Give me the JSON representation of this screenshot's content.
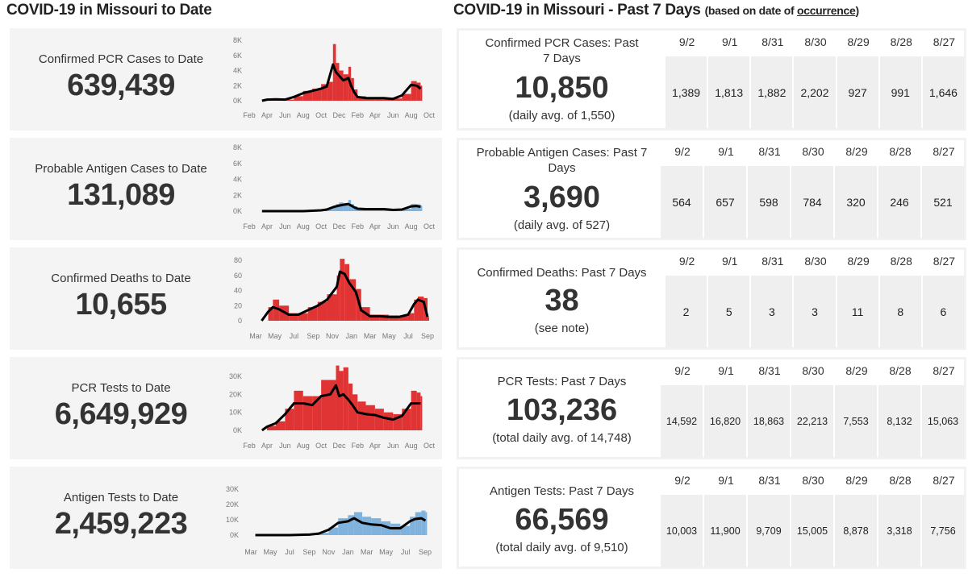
{
  "left_title": "COVID-19 in Missouri to Date",
  "right_title": {
    "main": "COVID-19 in Missouri - Past 7 Days",
    "sub_pre": "(based on date of ",
    "sub_link": "occurrence",
    "sub_post": ")"
  },
  "colors": {
    "red": "#e03434",
    "blue": "#7fb3dd",
    "avg_line": "#000000",
    "panel_bg": "#f4f4f4",
    "cell_bg": "#efefef"
  },
  "to_date": [
    {
      "label": "Confirmed PCR Cases to Date",
      "value": "639,439"
    },
    {
      "label": "Probable Antigen Cases to Date",
      "value": "131,089"
    },
    {
      "label": "Confirmed Deaths to Date",
      "value": "10,655"
    },
    {
      "label": "PCR Tests to Date",
      "value": "6,649,929"
    },
    {
      "label": "Antigen Tests to Date",
      "value": "2,459,223"
    }
  ],
  "past7": [
    {
      "label": "Confirmed PCR Cases: Past 7 Days",
      "value": "10,850",
      "note": "(daily avg. of 1,550)",
      "dates": [
        "9/2",
        "9/1",
        "8/31",
        "8/30",
        "8/29",
        "8/28",
        "8/27"
      ],
      "values": [
        "1,389",
        "1,813",
        "1,882",
        "2,202",
        "927",
        "991",
        "1,646"
      ]
    },
    {
      "label": "Probable Antigen Cases: Past 7 Days",
      "value": "3,690",
      "note": "(daily avg. of 527)",
      "dates": [
        "9/2",
        "9/1",
        "8/31",
        "8/30",
        "8/29",
        "8/28",
        "8/27"
      ],
      "values": [
        "564",
        "657",
        "598",
        "784",
        "320",
        "246",
        "521"
      ]
    },
    {
      "label": "Confirmed Deaths: Past 7 Days",
      "value": "38",
      "note": "(see note)",
      "dates": [
        "9/2",
        "9/1",
        "8/31",
        "8/30",
        "8/29",
        "8/28",
        "8/27"
      ],
      "values": [
        "2",
        "5",
        "3",
        "3",
        "11",
        "8",
        "6"
      ]
    },
    {
      "label": "PCR Tests: Past 7 Days",
      "value": "103,236",
      "note": "(total daily avg. of 14,748)",
      "dates": [
        "9/2",
        "9/1",
        "8/31",
        "8/30",
        "8/29",
        "8/28",
        "8/27"
      ],
      "values": [
        "14,592",
        "16,820",
        "18,863",
        "22,213",
        "7,553",
        "8,132",
        "15,063"
      ]
    },
    {
      "label": "Antigen Tests: Past 7 Days",
      "value": "66,569",
      "note": "(total daily avg. of 9,510)",
      "dates": [
        "9/2",
        "9/1",
        "8/31",
        "8/30",
        "8/29",
        "8/28",
        "8/27"
      ],
      "values": [
        "10,003",
        "11,900",
        "9,709",
        "15,005",
        "8,878",
        "3,318",
        "7,756"
      ]
    }
  ],
  "chart_data": [
    {
      "type": "bar",
      "color": "red",
      "ylim": [
        0,
        8000
      ],
      "xlim": [
        "2020-02-01",
        "2021-10-01"
      ],
      "y_ticks": [
        {
          "v": 0,
          "label": "0K"
        },
        {
          "v": 2000,
          "label": "2K"
        },
        {
          "v": 4000,
          "label": "4K"
        },
        {
          "v": 6000,
          "label": "6K"
        },
        {
          "v": 8000,
          "label": "8K"
        }
      ],
      "x_ticks": [
        {
          "d": "2020-02-01",
          "label": "Feb"
        },
        {
          "d": "2020-04-01",
          "label": "Apr"
        },
        {
          "d": "2020-06-01",
          "label": "Jun"
        },
        {
          "d": "2020-08-01",
          "label": "Aug"
        },
        {
          "d": "2020-10-01",
          "label": "Oct"
        },
        {
          "d": "2020-12-01",
          "label": "Dec"
        },
        {
          "d": "2021-02-01",
          "label": "Feb"
        },
        {
          "d": "2021-04-01",
          "label": "Apr"
        },
        {
          "d": "2021-06-01",
          "label": "Jun"
        },
        {
          "d": "2021-08-01",
          "label": "Aug"
        },
        {
          "d": "2021-10-01",
          "label": "Oct"
        }
      ],
      "x": [
        "2020-03-15",
        "2020-04-01",
        "2020-05-01",
        "2020-06-01",
        "2020-07-01",
        "2020-08-01",
        "2020-09-01",
        "2020-10-01",
        "2020-10-20",
        "2020-11-10",
        "2020-11-20",
        "2020-12-01",
        "2020-12-15",
        "2021-01-01",
        "2021-01-10",
        "2021-01-20",
        "2021-02-01",
        "2021-03-01",
        "2021-04-01",
        "2021-05-01",
        "2021-06-01",
        "2021-07-01",
        "2021-08-01",
        "2021-08-20",
        "2021-09-02"
      ],
      "daily": [
        0,
        200,
        200,
        150,
        600,
        1300,
        1600,
        2200,
        2500,
        7500,
        5000,
        4000,
        3500,
        4500,
        3000,
        1500,
        600,
        400,
        400,
        400,
        300,
        900,
        2600,
        2400,
        2000
      ],
      "avg": [
        0,
        150,
        180,
        150,
        500,
        1000,
        1300,
        1600,
        1900,
        4800,
        3800,
        3300,
        2700,
        3000,
        2000,
        1200,
        500,
        350,
        350,
        350,
        250,
        700,
        2100,
        2000,
        1600
      ]
    },
    {
      "type": "bar",
      "color": "blue",
      "ylim": [
        0,
        8000
      ],
      "xlim": [
        "2020-02-01",
        "2021-10-01"
      ],
      "y_ticks": [
        {
          "v": 0,
          "label": "0K"
        },
        {
          "v": 2000,
          "label": "2K"
        },
        {
          "v": 4000,
          "label": "4K"
        },
        {
          "v": 6000,
          "label": "6K"
        },
        {
          "v": 8000,
          "label": "8K"
        }
      ],
      "x_ticks": [
        {
          "d": "2020-02-01",
          "label": "Feb"
        },
        {
          "d": "2020-04-01",
          "label": "Apr"
        },
        {
          "d": "2020-06-01",
          "label": "Jun"
        },
        {
          "d": "2020-08-01",
          "label": "Aug"
        },
        {
          "d": "2020-10-01",
          "label": "Oct"
        },
        {
          "d": "2020-12-01",
          "label": "Dec"
        },
        {
          "d": "2021-02-01",
          "label": "Feb"
        },
        {
          "d": "2021-04-01",
          "label": "Apr"
        },
        {
          "d": "2021-06-01",
          "label": "Jun"
        },
        {
          "d": "2021-08-01",
          "label": "Aug"
        },
        {
          "d": "2021-10-01",
          "label": "Oct"
        }
      ],
      "x": [
        "2020-03-15",
        "2020-04-01",
        "2020-05-01",
        "2020-06-01",
        "2020-07-01",
        "2020-08-01",
        "2020-09-01",
        "2020-10-01",
        "2020-10-20",
        "2020-11-10",
        "2020-11-20",
        "2020-12-01",
        "2020-12-15",
        "2021-01-01",
        "2021-01-10",
        "2021-01-20",
        "2021-02-01",
        "2021-03-01",
        "2021-04-01",
        "2021-05-01",
        "2021-06-01",
        "2021-07-01",
        "2021-08-01",
        "2021-08-20",
        "2021-09-02"
      ],
      "daily": [
        0,
        0,
        0,
        0,
        0,
        0,
        80,
        150,
        300,
        700,
        900,
        1100,
        1000,
        1400,
        900,
        600,
        350,
        300,
        300,
        300,
        200,
        300,
        900,
        850,
        700
      ],
      "avg": [
        0,
        0,
        0,
        0,
        0,
        0,
        50,
        100,
        200,
        500,
        600,
        700,
        800,
        900,
        700,
        500,
        300,
        250,
        250,
        250,
        150,
        200,
        600,
        650,
        550
      ]
    },
    {
      "type": "bar",
      "color": "red",
      "ylim": [
        0,
        80
      ],
      "xlim": [
        "2020-03-01",
        "2021-09-01"
      ],
      "y_ticks": [
        {
          "v": 0,
          "label": "0"
        },
        {
          "v": 20,
          "label": "20"
        },
        {
          "v": 40,
          "label": "40"
        },
        {
          "v": 60,
          "label": "60"
        },
        {
          "v": 80,
          "label": "80"
        }
      ],
      "x_ticks": [
        {
          "d": "2020-03-01",
          "label": "Mar"
        },
        {
          "d": "2020-05-01",
          "label": "May"
        },
        {
          "d": "2020-07-01",
          "label": "Jul"
        },
        {
          "d": "2020-09-01",
          "label": "Sep"
        },
        {
          "d": "2020-11-01",
          "label": "Nov"
        },
        {
          "d": "2021-01-01",
          "label": "Jan"
        },
        {
          "d": "2021-03-01",
          "label": "Mar"
        },
        {
          "d": "2021-05-01",
          "label": "May"
        },
        {
          "d": "2021-07-01",
          "label": "Jul"
        },
        {
          "d": "2021-09-01",
          "label": "Sep"
        }
      ],
      "x": [
        "2020-03-20",
        "2020-04-10",
        "2020-04-25",
        "2020-05-15",
        "2020-06-15",
        "2020-07-15",
        "2020-08-15",
        "2020-09-15",
        "2020-10-15",
        "2020-11-15",
        "2020-11-25",
        "2020-12-10",
        "2020-12-25",
        "2021-01-15",
        "2021-02-01",
        "2021-03-01",
        "2021-04-01",
        "2021-05-01",
        "2021-06-01",
        "2021-07-01",
        "2021-07-20",
        "2021-08-01",
        "2021-08-20",
        "2021-09-01"
      ],
      "daily": [
        0,
        18,
        28,
        20,
        10,
        10,
        18,
        25,
        35,
        60,
        82,
        75,
        55,
        42,
        18,
        8,
        8,
        7,
        6,
        10,
        28,
        32,
        30,
        5
      ],
      "avg": [
        0,
        12,
        18,
        15,
        8,
        8,
        14,
        20,
        28,
        45,
        65,
        62,
        50,
        38,
        14,
        6,
        6,
        5,
        5,
        8,
        22,
        28,
        25,
        5
      ]
    },
    {
      "type": "bar",
      "color": "red",
      "ylim": [
        0,
        30000
      ],
      "xlim": [
        "2020-02-01",
        "2021-10-01"
      ],
      "y_ticks": [
        {
          "v": 0,
          "label": "0K"
        },
        {
          "v": 10000,
          "label": "10K"
        },
        {
          "v": 20000,
          "label": "20K"
        },
        {
          "v": 30000,
          "label": "30K"
        }
      ],
      "x_ticks": [
        {
          "d": "2020-02-01",
          "label": "Feb"
        },
        {
          "d": "2020-04-01",
          "label": "Apr"
        },
        {
          "d": "2020-06-01",
          "label": "Jun"
        },
        {
          "d": "2020-08-01",
          "label": "Aug"
        },
        {
          "d": "2020-10-01",
          "label": "Oct"
        },
        {
          "d": "2020-12-01",
          "label": "Dec"
        },
        {
          "d": "2021-02-01",
          "label": "Feb"
        },
        {
          "d": "2021-04-01",
          "label": "Apr"
        },
        {
          "d": "2021-06-01",
          "label": "Jun"
        },
        {
          "d": "2021-08-01",
          "label": "Aug"
        },
        {
          "d": "2021-10-01",
          "label": "Oct"
        }
      ],
      "x": [
        "2020-03-15",
        "2020-04-01",
        "2020-05-01",
        "2020-06-01",
        "2020-07-01",
        "2020-08-01",
        "2020-09-01",
        "2020-10-01",
        "2020-11-01",
        "2020-11-20",
        "2020-12-01",
        "2020-12-15",
        "2021-01-01",
        "2021-01-15",
        "2021-02-01",
        "2021-03-01",
        "2021-04-01",
        "2021-05-01",
        "2021-06-01",
        "2021-07-01",
        "2021-08-01",
        "2021-08-20",
        "2021-09-02"
      ],
      "daily": [
        0,
        2500,
        5000,
        12000,
        22000,
        19000,
        19000,
        28000,
        28000,
        36000,
        33000,
        35000,
        26000,
        20000,
        16000,
        14000,
        12000,
        10000,
        9000,
        12000,
        22000,
        21000,
        19000
      ],
      "avg": [
        0,
        2000,
        4000,
        9000,
        15000,
        15000,
        14000,
        19000,
        20000,
        25000,
        19000,
        20000,
        17000,
        14000,
        10000,
        9000,
        8500,
        7000,
        6000,
        8000,
        15000,
        15000,
        15000
      ]
    },
    {
      "type": "bar",
      "color": "blue",
      "ylim": [
        0,
        30000
      ],
      "xlim": [
        "2020-03-01",
        "2021-09-01"
      ],
      "y_ticks": [
        {
          "v": 0,
          "label": "0K"
        },
        {
          "v": 10000,
          "label": "10K"
        },
        {
          "v": 20000,
          "label": "20K"
        },
        {
          "v": 30000,
          "label": "30K"
        }
      ],
      "x_ticks": [
        {
          "d": "2020-03-01",
          "label": "Mar"
        },
        {
          "d": "2020-05-01",
          "label": "May"
        },
        {
          "d": "2020-07-01",
          "label": "Jul"
        },
        {
          "d": "2020-09-01",
          "label": "Sep"
        },
        {
          "d": "2020-11-01",
          "label": "Nov"
        },
        {
          "d": "2021-01-01",
          "label": "Jan"
        },
        {
          "d": "2021-03-01",
          "label": "Mar"
        },
        {
          "d": "2021-05-01",
          "label": "May"
        },
        {
          "d": "2021-07-01",
          "label": "Jul"
        },
        {
          "d": "2021-09-01",
          "label": "Sep"
        }
      ],
      "x": [
        "2020-03-15",
        "2020-05-01",
        "2020-07-01",
        "2020-09-01",
        "2020-10-01",
        "2020-11-01",
        "2020-12-01",
        "2021-01-01",
        "2021-01-20",
        "2021-02-15",
        "2021-03-15",
        "2021-04-15",
        "2021-05-15",
        "2021-06-15",
        "2021-07-15",
        "2021-08-01",
        "2021-08-20",
        "2021-09-02"
      ],
      "daily": [
        0,
        0,
        0,
        500,
        1500,
        5000,
        11000,
        13000,
        15000,
        12000,
        11000,
        9000,
        7500,
        6000,
        12000,
        15000,
        16000,
        15000
      ],
      "avg": [
        0,
        0,
        0,
        300,
        1000,
        3500,
        8000,
        9000,
        11000,
        8000,
        7000,
        6500,
        4500,
        4500,
        9000,
        10500,
        11000,
        9500
      ]
    }
  ]
}
